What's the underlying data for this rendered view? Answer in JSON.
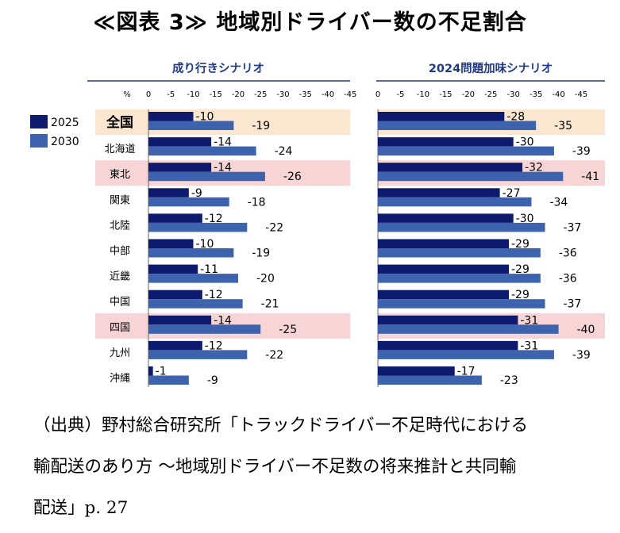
{
  "title": "≪図表 3≫ 地域別ドライバー数の不足割合",
  "source": {
    "line1": "（出典）野村総合研究所「トラックドライバー不足時代における",
    "line2": "輸配送のあり方 ～地域別ドライバー不足数の将来推計と共同輸",
    "line3": "配送」p. 27"
  },
  "colors": {
    "series_2025": "#0d1a6e",
    "series_2030": "#3d63ae",
    "highlight_orange": "#fbe6d0",
    "highlight_pink": "#f7d4d6",
    "heading": "#1f3a8a",
    "rule": "#1f3a8a"
  },
  "chart_data": {
    "type": "bar",
    "orientation": "horizontal",
    "categories": [
      "全国",
      "北海道",
      "東北",
      "関東",
      "北陸",
      "中部",
      "近畿",
      "中国",
      "四国",
      "九州",
      "沖縄"
    ],
    "highlighted": {
      "全国": "orange",
      "東北": "pink",
      "四国": "pink"
    },
    "legend": [
      "2025",
      "2030"
    ],
    "legend_position": "left",
    "unit": "%",
    "ticks": [
      "0",
      "-5",
      "-10",
      "-15",
      "-20",
      "-25",
      "-30",
      "-35",
      "-40",
      "-45"
    ],
    "xlim": [
      0,
      -45
    ],
    "panels": [
      {
        "title": "成り行きシナリオ",
        "series": [
          {
            "name": "2025",
            "values": [
              -10,
              -14,
              -14,
              -9,
              -12,
              -10,
              -11,
              -12,
              -14,
              -12,
              -1
            ]
          },
          {
            "name": "2030",
            "values": [
              -19,
              -24,
              -26,
              -18,
              -22,
              -19,
              -20,
              -21,
              -25,
              -22,
              -9
            ]
          }
        ]
      },
      {
        "title": "2024問題加味シナリオ",
        "series": [
          {
            "name": "2025",
            "values": [
              -28,
              -30,
              -32,
              -27,
              -30,
              -29,
              -29,
              -29,
              -31,
              -31,
              -17
            ]
          },
          {
            "name": "2030",
            "values": [
              -35,
              -39,
              -41,
              -34,
              -37,
              -36,
              -36,
              -37,
              -40,
              -39,
              -23
            ]
          }
        ]
      }
    ]
  }
}
